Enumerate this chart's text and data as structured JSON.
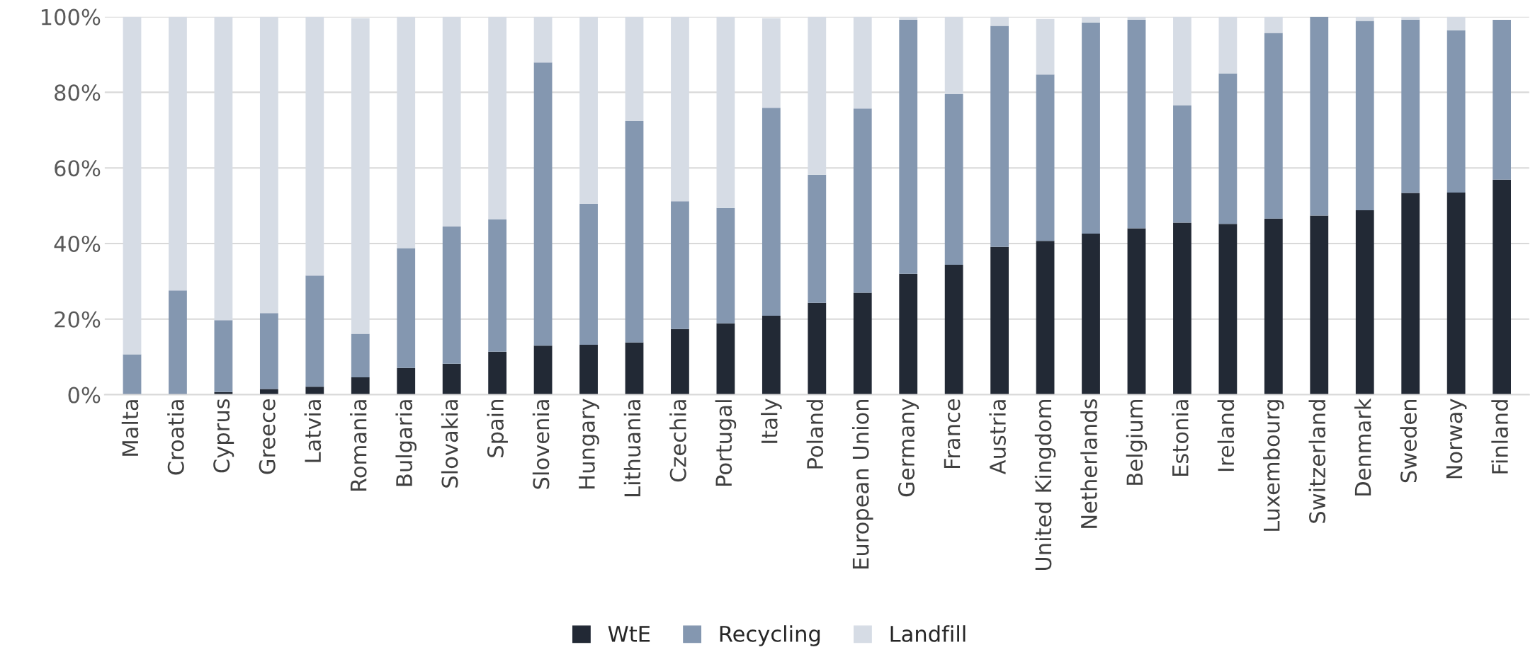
{
  "chart_data": {
    "type": "bar",
    "stacked": true,
    "categories": [
      "Malta",
      "Croatia",
      "Cyprus",
      "Greece",
      "Latvia",
      "Romania",
      "Bulgaria",
      "Slovakia",
      "Spain",
      "Slovenia",
      "Hungary",
      "Lithuania",
      "Czechia",
      "Portugal",
      "Italy",
      "Poland",
      "European Union",
      "Germany",
      "France",
      "Austria",
      "United Kingdom",
      "Netherlands",
      "Belgium",
      "Estonia",
      "Ireland",
      "Luxembourg",
      "Switzerland",
      "Denmark",
      "Sweden",
      "Norway",
      "Finland"
    ],
    "series": [
      {
        "name": "WtE",
        "color": "#222935",
        "values": [
          0,
          0,
          0.7,
          1.5,
          2.1,
          4.6,
          7.1,
          8.2,
          11.4,
          13.0,
          13.2,
          13.8,
          17.4,
          18.9,
          20.9,
          24.3,
          27.0,
          32.0,
          34.4,
          39.1,
          40.7,
          42.6,
          44.0,
          45.5,
          45.2,
          46.6,
          47.4,
          48.8,
          53.4,
          53.5,
          56.9
        ]
      },
      {
        "name": "Recycling",
        "color": "#8497b0",
        "values": [
          10.7,
          27.6,
          19.0,
          20.1,
          29.4,
          11.5,
          31.7,
          36.3,
          35.0,
          74.9,
          37.3,
          58.6,
          33.8,
          30.5,
          55.0,
          33.9,
          48.7,
          67.2,
          45.1,
          58.5,
          44.0,
          55.9,
          55.2,
          31.0,
          39.8,
          49.1,
          52.6,
          50.1,
          45.8,
          42.9,
          42.3
        ]
      },
      {
        "name": "Landfill",
        "color": "#d6dce5",
        "values": [
          89.3,
          72.4,
          80.3,
          78.4,
          68.5,
          83.5,
          61.2,
          55.5,
          53.6,
          12.1,
          49.5,
          27.6,
          48.8,
          50.6,
          23.7,
          41.8,
          24.3,
          0.8,
          20.5,
          2.4,
          14.7,
          1.5,
          0.8,
          23.5,
          15.0,
          4.3,
          0,
          1.1,
          0.8,
          3.6,
          0
        ]
      }
    ],
    "ylim": [
      0,
      100
    ],
    "yticks": [
      {
        "value": 0,
        "label": "0%"
      },
      {
        "value": 20,
        "label": "20%"
      },
      {
        "value": 40,
        "label": "40%"
      },
      {
        "value": 60,
        "label": "60%"
      },
      {
        "value": 80,
        "label": "80%"
      },
      {
        "value": 100,
        "label": "100%"
      }
    ],
    "grid": "y",
    "legend": "bottom"
  }
}
